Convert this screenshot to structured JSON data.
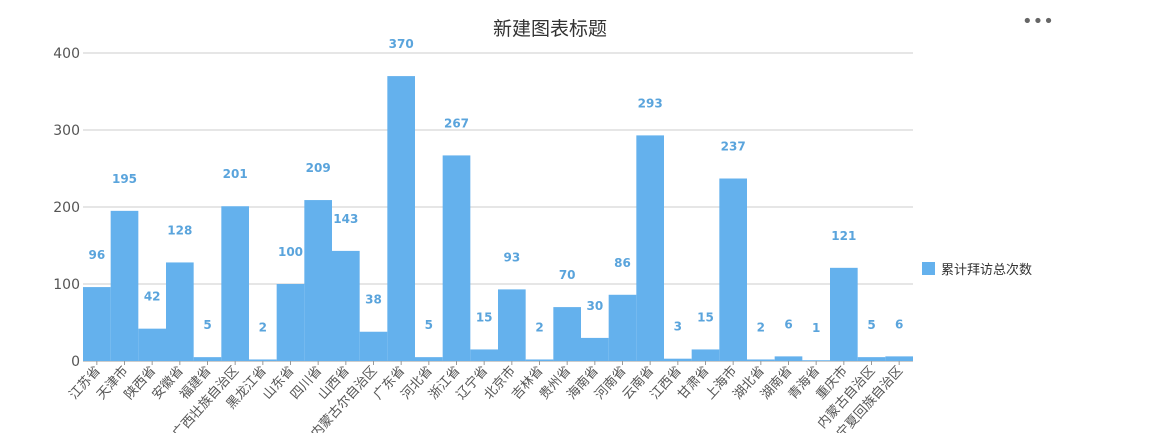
{
  "header": {
    "more_icon": "more-horizontal-icon",
    "more_glyph": "•••"
  },
  "chart_data": {
    "type": "bar",
    "title": "新建图表标题",
    "xlabel": "",
    "ylabel": "",
    "ylim": [
      0,
      400
    ],
    "yticks": [
      0,
      100,
      200,
      300,
      400
    ],
    "grid": true,
    "legend_position": "right",
    "bar_color": "#64b1ed",
    "label_color": "#5aa4dc",
    "categories": [
      "江苏省",
      "天津市",
      "陕西省",
      "安徽省",
      "福建省",
      "广西壮族自治区",
      "黑龙江省",
      "山东省",
      "四川省",
      "山西省",
      "内蒙古尔自治区",
      "广东省",
      "河北省",
      "浙江省",
      "辽宁省",
      "北京市",
      "吉林省",
      "贵州省",
      "海南省",
      "河南省",
      "云南省",
      "江西省",
      "甘肃省",
      "上海市",
      "湖北省",
      "湖南省",
      "青海省",
      "重庆市",
      "内蒙古自治区",
      "宁夏回族自治区"
    ],
    "series": [
      {
        "name": "累计拜访总次数",
        "values": [
          96,
          195,
          42,
          128,
          5,
          201,
          2,
          100,
          209,
          143,
          38,
          370,
          5,
          267,
          15,
          93,
          2,
          70,
          30,
          86,
          293,
          3,
          15,
          237,
          2,
          6,
          1,
          121,
          5,
          6
        ]
      }
    ]
  }
}
